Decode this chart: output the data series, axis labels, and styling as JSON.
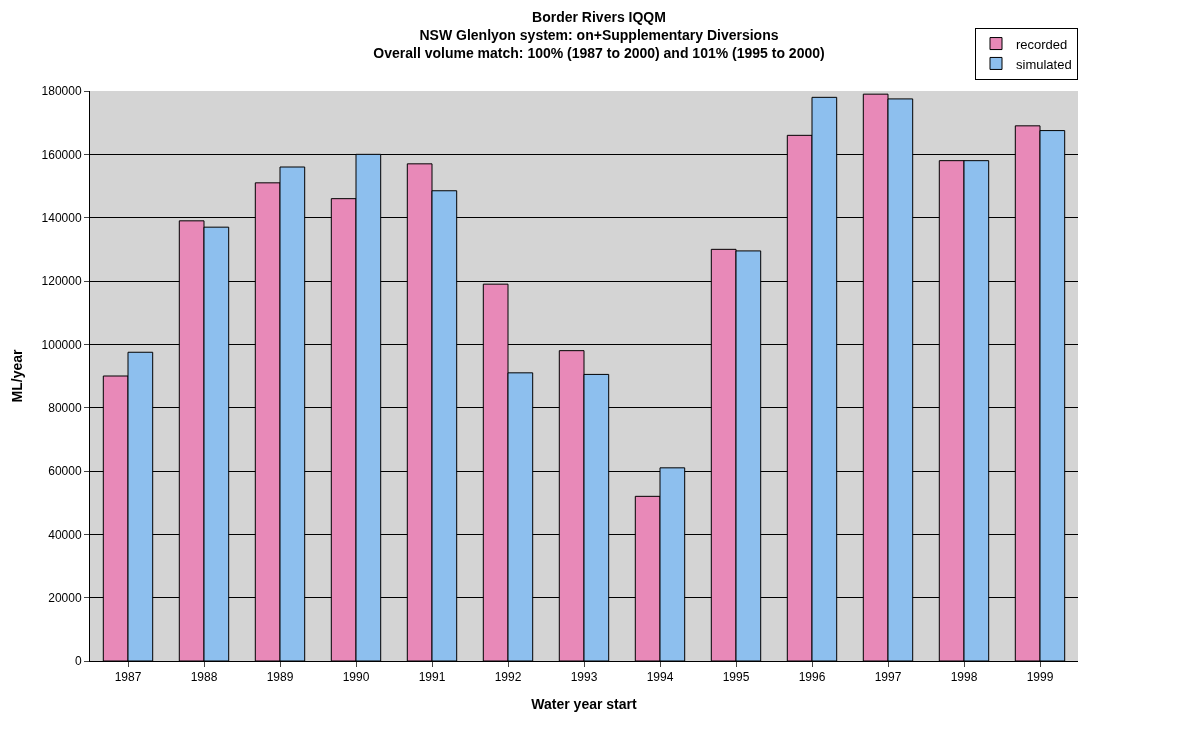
{
  "chart_data": {
    "type": "bar",
    "title": "Border Rivers IQQM\nNSW Glenlyon system: on+Supplementary Diversions\nOverall volume match: 100% (1987 to 2000) and 101% (1995 to 2000)",
    "xlabel": "Water year start",
    "ylabel": "ML/year",
    "categories": [
      "1987",
      "1988",
      "1989",
      "1990",
      "1991",
      "1992",
      "1993",
      "1994",
      "1995",
      "1996",
      "1997",
      "1998",
      "1999"
    ],
    "series": [
      {
        "name": "recorded",
        "color": "#e889b8",
        "values": [
          90000,
          139000,
          151000,
          146000,
          157000,
          119000,
          98000,
          52000,
          130000,
          166000,
          179000,
          158000,
          169000
        ]
      },
      {
        "name": "simulated",
        "color": "#8dbfee",
        "values": [
          97500,
          137000,
          156000,
          160000,
          148500,
          91000,
          90500,
          61000,
          129500,
          178000,
          177500,
          158000,
          167500
        ]
      }
    ],
    "ylim": [
      0,
      180000
    ],
    "yticks": [
      0,
      20000,
      40000,
      60000,
      80000,
      100000,
      120000,
      140000,
      160000,
      180000
    ],
    "grid": "y",
    "legend": "top right"
  }
}
